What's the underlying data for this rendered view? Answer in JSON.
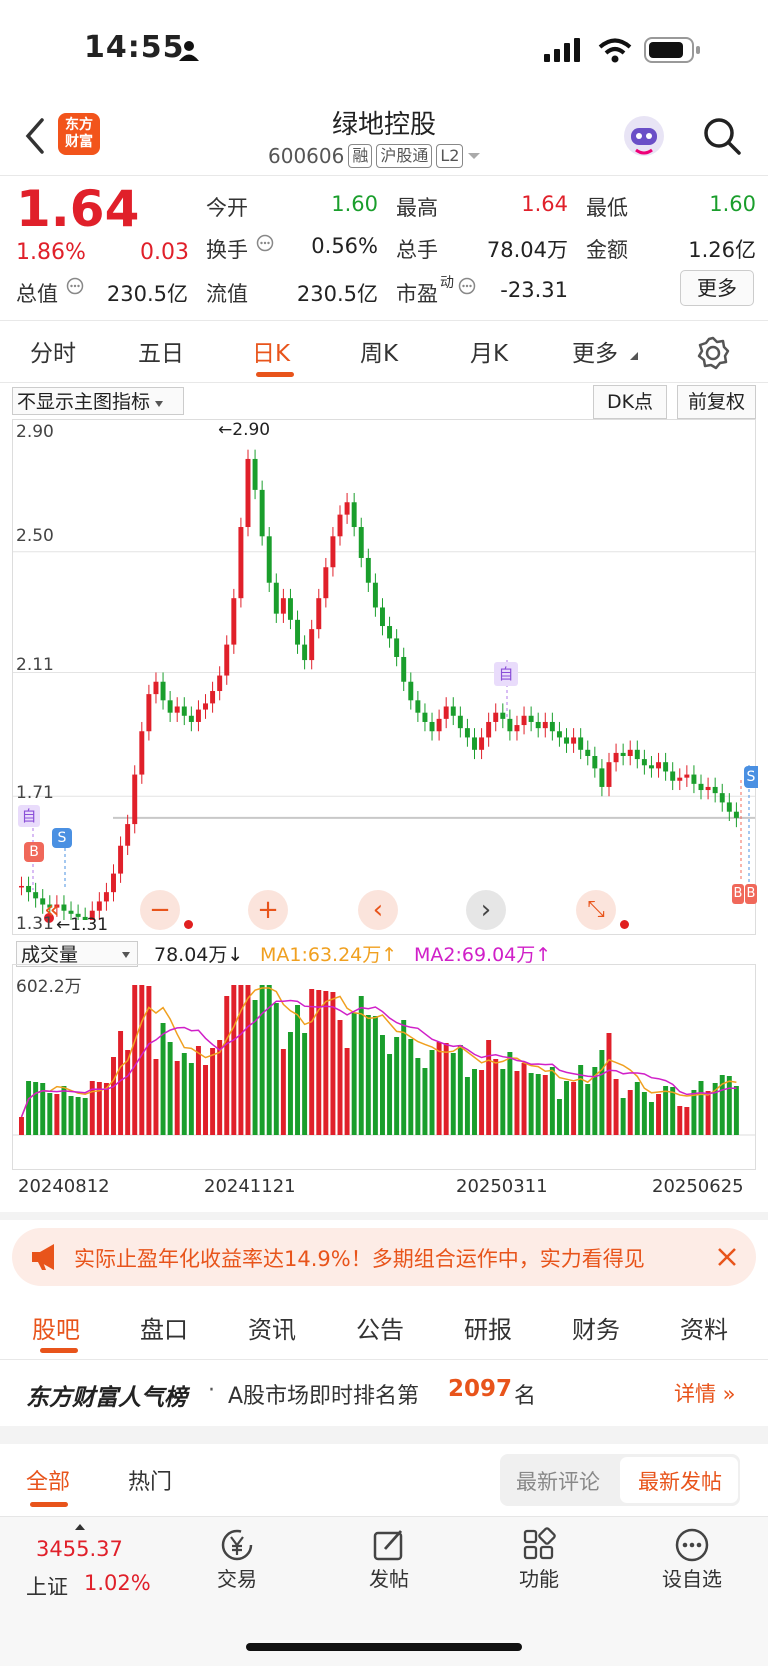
{
  "status_bar": {
    "time": "14:55"
  },
  "header": {
    "logo_text": "东方\n财富",
    "stock_name": "绿地控股",
    "stock_code": "600606",
    "tags": [
      "融",
      "沪股通",
      "L2"
    ]
  },
  "quote": {
    "price": "1.64",
    "change_pct": "1.86%",
    "change": "0.03",
    "open_label": "今开",
    "open": "1.60",
    "high_label": "最高",
    "high": "1.64",
    "low_label": "最低",
    "low": "1.60",
    "turnover_label": "换手",
    "turnover": "0.56%",
    "volume_label": "总手",
    "volume": "78.04万",
    "amount_label": "金额",
    "amount": "1.26亿",
    "mktcap_label": "总值",
    "mktcap": "230.5亿",
    "float_label": "流值",
    "float_cap": "230.5亿",
    "pe_label": "市盈",
    "pe_sup": "动",
    "pe": "-23.31",
    "more_label": "更多"
  },
  "chart_tabs": [
    {
      "label": "分时"
    },
    {
      "label": "五日"
    },
    {
      "label": "日K"
    },
    {
      "label": "周K"
    },
    {
      "label": "月K"
    },
    {
      "label": "更多"
    }
  ],
  "chart_controls": {
    "indicator_select": "不显示主图指标",
    "dk_label": "DK点",
    "adjust_label": "前复权"
  },
  "chart_data": {
    "type": "candlestick",
    "y_ticks": [
      "2.90",
      "2.50",
      "2.11",
      "1.71",
      "1.31"
    ],
    "ylim": [
      1.31,
      2.9
    ],
    "high_label": "2.90",
    "low_label": "1.31",
    "markers": [
      "自",
      "B",
      "S",
      "自",
      "S",
      "B",
      "B"
    ],
    "current_price": 1.64,
    "close_series": [
      1.42,
      1.4,
      1.38,
      1.36,
      1.35,
      1.36,
      1.34,
      1.33,
      1.32,
      1.31,
      1.34,
      1.37,
      1.4,
      1.46,
      1.55,
      1.62,
      1.78,
      1.92,
      2.04,
      2.08,
      2.02,
      1.98,
      2.0,
      1.97,
      1.95,
      1.99,
      2.01,
      2.05,
      2.1,
      2.2,
      2.35,
      2.58,
      2.8,
      2.7,
      2.55,
      2.4,
      2.3,
      2.35,
      2.28,
      2.2,
      2.15,
      2.25,
      2.35,
      2.45,
      2.55,
      2.62,
      2.66,
      2.58,
      2.48,
      2.4,
      2.32,
      2.26,
      2.22,
      2.16,
      2.08,
      2.02,
      1.98,
      1.95,
      1.92,
      1.96,
      2.0,
      1.97,
      1.93,
      1.9,
      1.86,
      1.9,
      1.95,
      1.98,
      1.96,
      1.92,
      1.94,
      1.97,
      1.95,
      1.93,
      1.95,
      1.92,
      1.9,
      1.88,
      1.9,
      1.86,
      1.84,
      1.8,
      1.74,
      1.82,
      1.85,
      1.84,
      1.86,
      1.83,
      1.81,
      1.8,
      1.82,
      1.79,
      1.76,
      1.77,
      1.78,
      1.75,
      1.73,
      1.74,
      1.72,
      1.69,
      1.66,
      1.64
    ]
  },
  "volume": {
    "select_label": "成交量",
    "vol": "78.04万",
    "ma1": "MA1:63.24万",
    "ma2": "MA2:69.04万",
    "max_label": "602.2万",
    "dates": [
      "20240812",
      "20241121",
      "20250311",
      "20250625"
    ]
  },
  "banner": {
    "text": "实际止盈年化收益率达14.9%！多期组合运作中，实力看得见"
  },
  "sub_tabs": [
    {
      "label": "股吧"
    },
    {
      "label": "盘口"
    },
    {
      "label": "资讯"
    },
    {
      "label": "公告"
    },
    {
      "label": "研报"
    },
    {
      "label": "财务"
    },
    {
      "label": "资料"
    }
  ],
  "rank": {
    "brand": "东方财富人气榜",
    "text_prefix": "A股市场即时排名第",
    "rank_value": "2097",
    "text_suffix": "名",
    "detail_label": "详情"
  },
  "filter": {
    "all_label": "全部",
    "hot_label": "热门",
    "latest_comment": "最新评论",
    "latest_post": "最新发帖"
  },
  "bottom_nav": {
    "index_value": "3455.37",
    "index_name": "上证",
    "index_change": "1.02%",
    "items": [
      {
        "label": "交易"
      },
      {
        "label": "发帖"
      },
      {
        "label": "功能"
      },
      {
        "label": "设自选"
      }
    ]
  }
}
